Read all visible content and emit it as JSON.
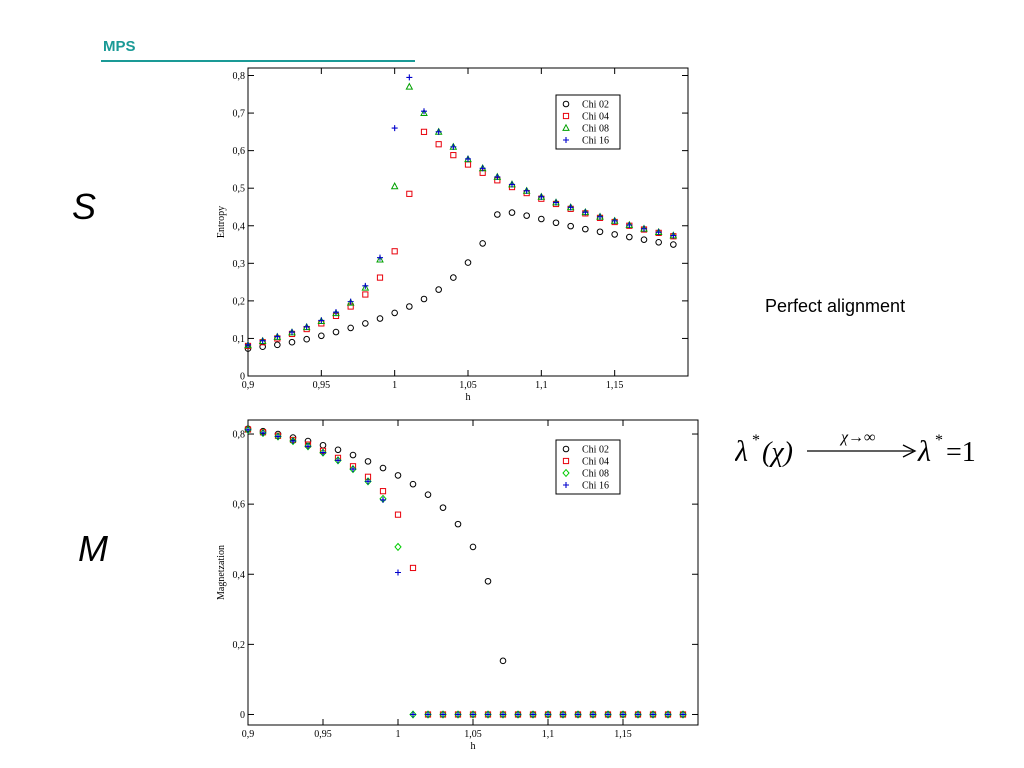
{
  "slide": {
    "title": "MPS",
    "symbol_top": "S",
    "symbol_bottom": "M",
    "note": "Perfect alignment",
    "formula": {
      "lhs_base": "λ",
      "star": "*",
      "lhs_arg": "(χ)",
      "arrow_label": "χ→∞",
      "rhs_base": "λ",
      "rhs_value": "=1"
    }
  },
  "chart_data": [
    {
      "type": "scatter",
      "title": "",
      "xlabel": "h",
      "ylabel": "Entropy",
      "xlim": [
        0.9,
        1.2
      ],
      "ylim": [
        0,
        0.82
      ],
      "xticks": [
        0.9,
        0.95,
        1,
        1.05,
        1.1,
        1.15
      ],
      "xtick_labels": [
        "0,9",
        "0,95",
        "1",
        "1,05",
        "1,1",
        "1,15"
      ],
      "yticks": [
        0,
        0.1,
        0.2,
        0.3,
        0.4,
        0.5,
        0.6,
        0.7,
        0.8
      ],
      "ytick_labels": [
        "0",
        "0,1",
        "0,2",
        "0,3",
        "0,4",
        "0,5",
        "0,6",
        "0,7",
        "0,8"
      ],
      "grid": false,
      "legend_position": "top-right",
      "series": [
        {
          "name": "Chi 02",
          "marker": "circle",
          "color": "#000000",
          "x": [
            0.9,
            0.91,
            0.92,
            0.93,
            0.94,
            0.95,
            0.96,
            0.97,
            0.98,
            0.99,
            1.0,
            1.01,
            1.02,
            1.03,
            1.04,
            1.05,
            1.06,
            1.07,
            1.08,
            1.09,
            1.1,
            1.11,
            1.12,
            1.13,
            1.14,
            1.15,
            1.16,
            1.17,
            1.18,
            1.19
          ],
          "y": [
            0.073,
            0.078,
            0.083,
            0.09,
            0.098,
            0.107,
            0.117,
            0.128,
            0.14,
            0.153,
            0.168,
            0.185,
            0.205,
            0.23,
            0.262,
            0.302,
            0.353,
            0.43,
            0.435,
            0.427,
            0.418,
            0.408,
            0.399,
            0.391,
            0.384,
            0.377,
            0.37,
            0.363,
            0.356,
            0.35
          ]
        },
        {
          "name": "Chi 04",
          "marker": "square",
          "color": "#e8000b",
          "x": [
            0.9,
            0.91,
            0.92,
            0.93,
            0.94,
            0.95,
            0.96,
            0.97,
            0.98,
            0.99,
            1.0,
            1.01,
            1.02,
            1.03,
            1.04,
            1.05,
            1.06,
            1.07,
            1.08,
            1.09,
            1.1,
            1.11,
            1.12,
            1.13,
            1.14,
            1.15,
            1.16,
            1.17,
            1.18,
            1.19
          ],
          "y": [
            0.08,
            0.09,
            0.1,
            0.112,
            0.125,
            0.14,
            0.16,
            0.185,
            0.217,
            0.262,
            0.332,
            0.485,
            0.65,
            0.617,
            0.588,
            0.563,
            0.541,
            0.521,
            0.503,
            0.487,
            0.472,
            0.458,
            0.445,
            0.433,
            0.421,
            0.41,
            0.4,
            0.39,
            0.381,
            0.372
          ]
        },
        {
          "name": "Chi 08",
          "marker": "triangle",
          "color": "#00a000",
          "x": [
            0.9,
            0.91,
            0.92,
            0.93,
            0.94,
            0.95,
            0.96,
            0.97,
            0.98,
            0.99,
            1.0,
            1.01,
            1.02,
            1.03,
            1.04,
            1.05,
            1.06,
            1.07,
            1.08,
            1.09,
            1.1,
            1.11,
            1.12,
            1.13,
            1.14,
            1.15,
            1.16,
            1.17,
            1.18,
            1.19
          ],
          "y": [
            0.082,
            0.093,
            0.104,
            0.116,
            0.13,
            0.146,
            0.167,
            0.195,
            0.235,
            0.31,
            0.505,
            0.77,
            0.7,
            0.65,
            0.61,
            0.577,
            0.553,
            0.53,
            0.51,
            0.493,
            0.477,
            0.462,
            0.449,
            0.436,
            0.424,
            0.413,
            0.402,
            0.392,
            0.383,
            0.374
          ]
        },
        {
          "name": "Chi 16",
          "marker": "plus",
          "color": "#0000cc",
          "x": [
            0.9,
            0.91,
            0.92,
            0.93,
            0.94,
            0.95,
            0.96,
            0.97,
            0.98,
            0.99,
            1.0,
            1.01,
            1.02,
            1.03,
            1.04,
            1.05,
            1.06,
            1.07,
            1.08,
            1.09,
            1.1,
            1.11,
            1.12,
            1.13,
            1.14,
            1.15,
            1.16,
            1.17,
            1.18,
            1.19
          ],
          "y": [
            0.083,
            0.094,
            0.105,
            0.117,
            0.131,
            0.148,
            0.17,
            0.198,
            0.24,
            0.315,
            0.66,
            0.795,
            0.705,
            0.65,
            0.61,
            0.578,
            0.553,
            0.53,
            0.51,
            0.493,
            0.477,
            0.462,
            0.449,
            0.436,
            0.424,
            0.413,
            0.402,
            0.392,
            0.383,
            0.374
          ]
        }
      ]
    },
    {
      "type": "scatter",
      "title": "",
      "xlabel": "h",
      "ylabel": "Magnetzation",
      "xlim": [
        0.9,
        1.2
      ],
      "ylim": [
        -0.03,
        0.84
      ],
      "xticks": [
        0.9,
        0.95,
        1,
        1.05,
        1.1,
        1.15
      ],
      "xtick_labels": [
        "0,9",
        "0,95",
        "1",
        "1,05",
        "1,1",
        "1,15"
      ],
      "yticks": [
        0,
        0.2,
        0.4,
        0.6,
        0.8
      ],
      "ytick_labels": [
        "0",
        "0,2",
        "0,4",
        "0,6",
        "0,8"
      ],
      "grid": false,
      "legend_position": "top-right",
      "series": [
        {
          "name": "Chi 02",
          "marker": "circle",
          "color": "#000000",
          "x": [
            0.9,
            0.91,
            0.92,
            0.93,
            0.94,
            0.95,
            0.96,
            0.97,
            0.98,
            0.99,
            1.0,
            1.01,
            1.02,
            1.03,
            1.04,
            1.05,
            1.06,
            1.07,
            1.08,
            1.09,
            1.1,
            1.11,
            1.12,
            1.13,
            1.14,
            1.15,
            1.16,
            1.17,
            1.18,
            1.19
          ],
          "y": [
            0.815,
            0.808,
            0.8,
            0.79,
            0.78,
            0.768,
            0.755,
            0.74,
            0.722,
            0.703,
            0.682,
            0.657,
            0.627,
            0.59,
            0.543,
            0.478,
            0.38,
            0.153,
            0,
            0,
            0,
            0,
            0,
            0,
            0,
            0,
            0,
            0,
            0,
            0
          ]
        },
        {
          "name": "Chi 04",
          "marker": "square",
          "color": "#e8000b",
          "x": [
            0.9,
            0.91,
            0.92,
            0.93,
            0.94,
            0.95,
            0.96,
            0.97,
            0.98,
            0.99,
            1.0,
            1.01,
            1.02,
            1.03,
            1.04,
            1.05,
            1.06,
            1.07,
            1.08,
            1.09,
            1.1,
            1.11,
            1.12,
            1.13,
            1.14,
            1.15,
            1.16,
            1.17,
            1.18,
            1.19
          ],
          "y": [
            0.813,
            0.805,
            0.795,
            0.783,
            0.77,
            0.752,
            0.732,
            0.708,
            0.678,
            0.637,
            0.57,
            0.418,
            0,
            0,
            0,
            0,
            0,
            0,
            0,
            0,
            0,
            0,
            0,
            0,
            0,
            0,
            0,
            0,
            0,
            0
          ]
        },
        {
          "name": "Chi 08",
          "marker": "diamond",
          "color": "#00cc00",
          "x": [
            0.9,
            0.91,
            0.92,
            0.93,
            0.94,
            0.95,
            0.96,
            0.97,
            0.98,
            0.99,
            1.0,
            1.01,
            1.02,
            1.03,
            1.04,
            1.05,
            1.06,
            1.07,
            1.08,
            1.09,
            1.1,
            1.11,
            1.12,
            1.13,
            1.14,
            1.15,
            1.16,
            1.17,
            1.18,
            1.19
          ],
          "y": [
            0.812,
            0.803,
            0.793,
            0.78,
            0.765,
            0.747,
            0.725,
            0.7,
            0.665,
            0.615,
            0.478,
            0,
            0,
            0,
            0,
            0,
            0,
            0,
            0,
            0,
            0,
            0,
            0,
            0,
            0,
            0,
            0,
            0,
            0,
            0
          ]
        },
        {
          "name": "Chi 16",
          "marker": "plus",
          "color": "#0000cc",
          "x": [
            0.9,
            0.91,
            0.92,
            0.93,
            0.94,
            0.95,
            0.96,
            0.97,
            0.98,
            0.99,
            1.0,
            1.01,
            1.02,
            1.03,
            1.04,
            1.05,
            1.06,
            1.07,
            1.08,
            1.09,
            1.1,
            1.11,
            1.12,
            1.13,
            1.14,
            1.15,
            1.16,
            1.17,
            1.18,
            1.19
          ],
          "y": [
            0.812,
            0.803,
            0.793,
            0.78,
            0.765,
            0.747,
            0.725,
            0.7,
            0.665,
            0.612,
            0.405,
            0,
            0,
            0,
            0,
            0,
            0,
            0,
            0,
            0,
            0,
            0,
            0,
            0,
            0,
            0,
            0,
            0,
            0,
            0
          ]
        }
      ]
    }
  ]
}
